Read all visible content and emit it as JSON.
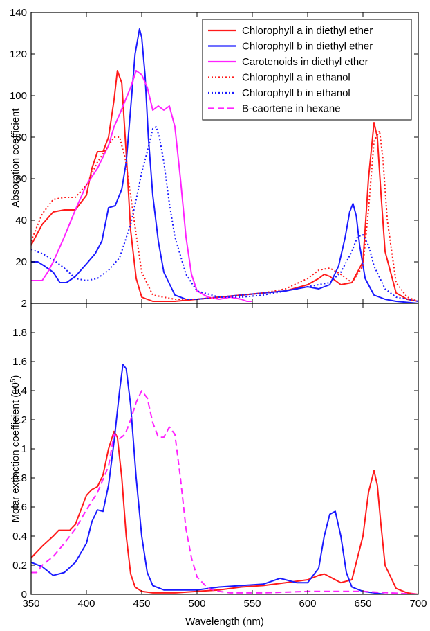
{
  "chart_data": [
    {
      "type": "line",
      "ylabel": "Absorption coefficient",
      "xlim": [
        350,
        700
      ],
      "ylim": [
        0,
        140
      ],
      "y_ticks": [
        20,
        40,
        60,
        80,
        100,
        120,
        140
      ],
      "grid": false,
      "legend_position": "top-right",
      "series": [
        {
          "name": "Chlorophyll a in diethyl ether",
          "color": "#ff1a1a",
          "style": "solid",
          "x": [
            350,
            360,
            370,
            380,
            390,
            400,
            405,
            410,
            415,
            420,
            425,
            428,
            432,
            436,
            440,
            445,
            450,
            460,
            480,
            500,
            520,
            540,
            560,
            580,
            600,
            610,
            615,
            620,
            630,
            640,
            650,
            655,
            660,
            663,
            666,
            670,
            680,
            690,
            700
          ],
          "y": [
            28,
            38,
            44,
            45,
            45,
            52,
            65,
            73,
            73,
            80,
            98,
            112,
            106,
            72,
            35,
            12,
            3,
            1,
            1,
            2,
            3,
            4,
            5,
            6,
            9,
            12,
            14,
            13,
            9,
            10,
            20,
            60,
            87,
            80,
            55,
            25,
            5,
            2,
            1
          ]
        },
        {
          "name": "Chlorophyll b in diethyl ether",
          "color": "#1a1aff",
          "style": "solid",
          "x": [
            350,
            356,
            362,
            370,
            376,
            382,
            390,
            400,
            408,
            414,
            420,
            426,
            432,
            436,
            440,
            444,
            448,
            450,
            453,
            456,
            460,
            465,
            470,
            480,
            490,
            500,
            520,
            540,
            560,
            580,
            600,
            610,
            620,
            628,
            634,
            638,
            641,
            644,
            647,
            652,
            660,
            670,
            680,
            700
          ],
          "y": [
            20,
            20,
            18,
            15,
            10,
            10,
            13,
            19,
            24,
            30,
            46,
            47,
            55,
            68,
            94,
            120,
            132,
            128,
            110,
            80,
            52,
            30,
            15,
            4,
            2,
            2,
            3,
            4,
            5,
            6,
            8,
            7,
            9,
            18,
            32,
            44,
            48,
            42,
            28,
            12,
            4,
            2,
            1,
            0
          ]
        },
        {
          "name": "Carotenoids in diethyl ether",
          "color": "#ff22ff",
          "style": "solid",
          "x": [
            350,
            360,
            365,
            370,
            380,
            390,
            400,
            410,
            420,
            425,
            430,
            440,
            445,
            450,
            455,
            460,
            465,
            470,
            475,
            480,
            485,
            490,
            495,
            500,
            510,
            520,
            530,
            540,
            545,
            550
          ],
          "y": [
            11,
            11,
            15,
            20,
            32,
            45,
            57,
            65,
            76,
            85,
            91,
            104,
            112,
            110,
            104,
            93,
            95,
            93,
            95,
            85,
            60,
            32,
            14,
            6,
            3,
            2,
            3,
            2,
            1,
            1
          ]
        },
        {
          "name": "Chlorophyll a in ethanol",
          "color": "#ff1a1a",
          "style": "dotted",
          "x": [
            350,
            360,
            370,
            380,
            390,
            400,
            410,
            420,
            425,
            430,
            435,
            440,
            445,
            450,
            460,
            480,
            500,
            520,
            540,
            560,
            580,
            600,
            610,
            620,
            630,
            640,
            650,
            655,
            660,
            665,
            668,
            672,
            680,
            690,
            700
          ],
          "y": [
            30,
            43,
            50,
            51,
            51,
            57,
            68,
            76,
            80,
            80,
            70,
            52,
            33,
            15,
            4,
            2,
            2,
            3,
            4,
            5,
            7,
            12,
            16,
            17,
            14,
            10,
            18,
            45,
            78,
            83,
            70,
            40,
            10,
            3,
            1
          ]
        },
        {
          "name": "Chlorophyll b in ethanol",
          "color": "#1a1aff",
          "style": "dotted",
          "x": [
            350,
            360,
            370,
            380,
            390,
            400,
            410,
            420,
            430,
            440,
            445,
            450,
            455,
            460,
            463,
            466,
            470,
            475,
            480,
            490,
            500,
            520,
            540,
            560,
            580,
            600,
            620,
            630,
            640,
            645,
            650,
            655,
            660,
            670,
            680,
            700
          ],
          "y": [
            26,
            24,
            21,
            17,
            12,
            11,
            12,
            16,
            22,
            38,
            50,
            63,
            73,
            84,
            85,
            80,
            68,
            48,
            32,
            14,
            6,
            3,
            3,
            4,
            6,
            8,
            10,
            15,
            25,
            32,
            33,
            28,
            18,
            7,
            3,
            1
          ]
        }
      ]
    },
    {
      "type": "line",
      "xlabel": "Wavelength (nm)",
      "ylabel": "Molar extinction coefficient (10",
      "ylabel_sup": "5",
      "ylabel_close": ")",
      "xlim": [
        350,
        700
      ],
      "x_ticks": [
        350,
        400,
        450,
        500,
        550,
        600,
        650,
        700
      ],
      "ylim": [
        0,
        2
      ],
      "y_ticks": [
        "0",
        "0.2",
        "0.4",
        "0.6",
        "0.8",
        "1",
        "1.2",
        "1.4",
        "1.6",
        "1.8",
        "2"
      ],
      "grid": false,
      "series": [
        {
          "color": "#ff1a1a",
          "style": "solid",
          "x": [
            350,
            360,
            370,
            375,
            380,
            385,
            390,
            395,
            400,
            405,
            410,
            415,
            420,
            425,
            428,
            432,
            436,
            440,
            444,
            450,
            460,
            480,
            500,
            520,
            540,
            560,
            580,
            600,
            610,
            615,
            620,
            630,
            640,
            650,
            655,
            660,
            663,
            666,
            670,
            680,
            690,
            700
          ],
          "y": [
            0.25,
            0.33,
            0.4,
            0.44,
            0.44,
            0.44,
            0.48,
            0.58,
            0.68,
            0.72,
            0.74,
            0.82,
            1.0,
            1.12,
            1.08,
            0.8,
            0.4,
            0.14,
            0.05,
            0.02,
            0.01,
            0.01,
            0.02,
            0.03,
            0.05,
            0.06,
            0.08,
            0.1,
            0.13,
            0.14,
            0.12,
            0.08,
            0.1,
            0.4,
            0.7,
            0.85,
            0.75,
            0.5,
            0.2,
            0.04,
            0.01,
            0.0
          ]
        },
        {
          "color": "#1a1aff",
          "style": "solid",
          "x": [
            350,
            360,
            370,
            380,
            390,
            400,
            405,
            410,
            415,
            420,
            425,
            430,
            433,
            436,
            440,
            445,
            450,
            455,
            460,
            470,
            480,
            500,
            520,
            540,
            560,
            575,
            590,
            600,
            610,
            615,
            620,
            625,
            630,
            635,
            640,
            650,
            660,
            670,
            700
          ],
          "y": [
            0.22,
            0.19,
            0.13,
            0.15,
            0.22,
            0.35,
            0.5,
            0.58,
            0.57,
            0.75,
            1.05,
            1.4,
            1.58,
            1.55,
            1.3,
            0.8,
            0.4,
            0.15,
            0.06,
            0.03,
            0.03,
            0.03,
            0.05,
            0.06,
            0.07,
            0.11,
            0.08,
            0.08,
            0.18,
            0.4,
            0.55,
            0.57,
            0.4,
            0.15,
            0.05,
            0.02,
            0.01,
            0.0,
            0.0
          ]
        },
        {
          "name": "B-caortene in hexane",
          "color": "#ff22ff",
          "style": "dashed",
          "x": [
            350,
            355,
            360,
            370,
            380,
            390,
            400,
            410,
            420,
            425,
            430,
            435,
            440,
            445,
            450,
            455,
            460,
            465,
            470,
            475,
            480,
            485,
            490,
            495,
            500,
            505,
            510,
            520,
            530,
            540,
            560,
            600,
            650,
            700
          ],
          "y": [
            0.15,
            0.15,
            0.2,
            0.26,
            0.35,
            0.45,
            0.58,
            0.7,
            0.88,
            1.1,
            1.07,
            1.1,
            1.2,
            1.32,
            1.4,
            1.35,
            1.18,
            1.08,
            1.08,
            1.15,
            1.1,
            0.8,
            0.45,
            0.25,
            0.12,
            0.08,
            0.04,
            0.02,
            0.01,
            0.01,
            0.01,
            0.02,
            0.02,
            0.0
          ]
        }
      ]
    }
  ],
  "legend": [
    {
      "label": "Chlorophyll a in diethyl ether",
      "color": "#ff1a1a",
      "style": "solid"
    },
    {
      "label": "Chlorophyll b in diethyl ether",
      "color": "#1a1aff",
      "style": "solid"
    },
    {
      "label": "Carotenoids in diethyl ether",
      "color": "#ff22ff",
      "style": "solid"
    },
    {
      "label": "Chlorophyll a in ethanol",
      "color": "#ff1a1a",
      "style": "dotted"
    },
    {
      "label": "Chlorophyll b in ethanol",
      "color": "#1a1aff",
      "style": "dotted"
    },
    {
      "label": "B-caortene in hexane",
      "color": "#ff22ff",
      "style": "dashed"
    }
  ]
}
